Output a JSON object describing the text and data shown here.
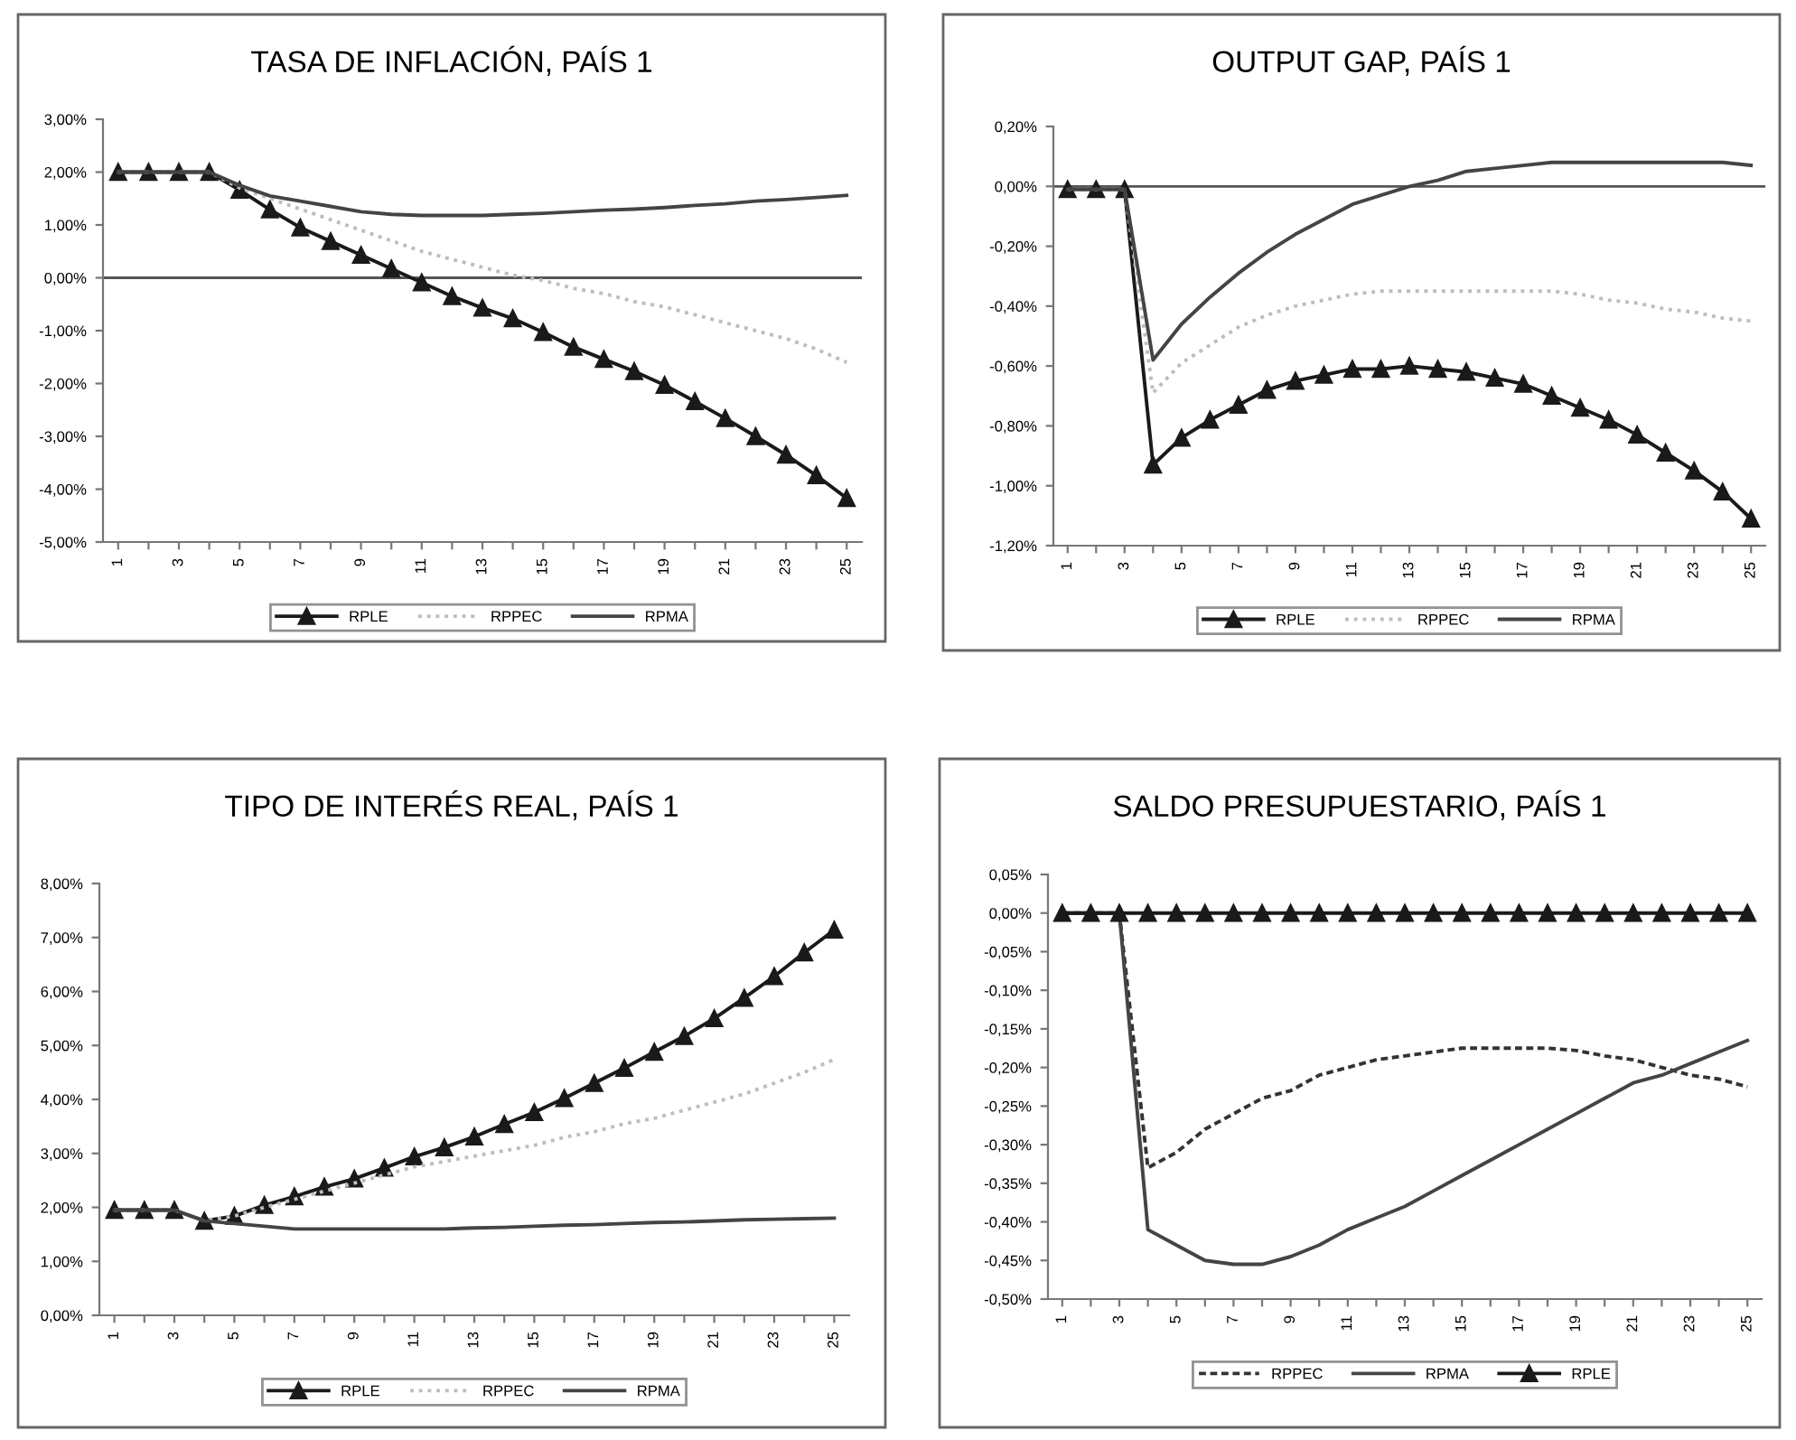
{
  "chart_data": [
    {
      "type": "line",
      "title": "TASA DE INFLACIÓN, PAÍS 1",
      "categories": [
        "1",
        null,
        "3",
        null,
        "5",
        null,
        "7",
        null,
        "9",
        null,
        "11",
        null,
        "13",
        null,
        "15",
        null,
        "17",
        null,
        "19",
        null,
        "21",
        null,
        "23",
        null,
        "25"
      ],
      "series": [
        {
          "name": "RPLE",
          "color": "#1a1a1a",
          "marker": "triangle",
          "line_style": "solid",
          "values": [
            2,
            2,
            2,
            2,
            1.66,
            1.29,
            0.95,
            0.69,
            0.43,
            0.17,
            -0.09,
            -0.35,
            -0.57,
            -0.77,
            -1.03,
            -1.31,
            -1.54,
            -1.77,
            -2.03,
            -2.34,
            -2.66,
            -3.0,
            -3.35,
            -3.74,
            -4.17
          ]
        },
        {
          "name": "RPPEC",
          "color": "#bdbdbd",
          "marker": "none",
          "line_style": "dotted",
          "values": [
            2,
            2,
            2,
            2,
            1.7,
            1.5,
            1.3,
            1.1,
            0.9,
            0.7,
            0.5,
            0.35,
            0.2,
            0.05,
            -0.05,
            -0.2,
            -0.3,
            -0.45,
            -0.55,
            -0.7,
            -0.85,
            -1.0,
            -1.15,
            -1.35,
            -1.6
          ]
        },
        {
          "name": "RPMA",
          "color": "#444444",
          "marker": "none",
          "line_style": "solid",
          "values": [
            2,
            2,
            2,
            2,
            1.75,
            1.55,
            1.45,
            1.35,
            1.25,
            1.2,
            1.18,
            1.18,
            1.18,
            1.2,
            1.22,
            1.25,
            1.28,
            1.3,
            1.33,
            1.37,
            1.4,
            1.45,
            1.48,
            1.52,
            1.56
          ]
        }
      ],
      "ylim": [
        -5,
        3
      ],
      "yticks": [
        {
          "value": 3,
          "label": "3,00%"
        },
        {
          "value": 2,
          "label": "2,00%"
        },
        {
          "value": 1,
          "label": "1,00%"
        },
        {
          "value": 0,
          "label": "0,00%"
        },
        {
          "value": -1,
          "label": "-1,00%"
        },
        {
          "value": -2,
          "label": "-2,00%"
        },
        {
          "value": -3,
          "label": "-3,00%"
        },
        {
          "value": -4,
          "label": "-4,00%"
        },
        {
          "value": -5,
          "label": "-5,00%"
        }
      ],
      "ref_lines": [
        {
          "axis": "y",
          "value": 0,
          "color": "#555555"
        }
      ],
      "legend": "bottom"
    },
    {
      "type": "line",
      "title": "OUTPUT GAP, PAÍS 1",
      "categories": [
        "1",
        null,
        "3",
        null,
        "5",
        null,
        "7",
        null,
        "9",
        null,
        "11",
        null,
        "13",
        null,
        "15",
        null,
        "17",
        null,
        "19",
        null,
        "21",
        null,
        "23",
        null,
        "25"
      ],
      "series": [
        {
          "name": "RPLE",
          "color": "#1a1a1a",
          "marker": "triangle",
          "line_style": "solid",
          "values": [
            -0.01,
            -0.01,
            -0.01,
            -0.93,
            -0.84,
            -0.78,
            -0.73,
            -0.68,
            -0.65,
            -0.63,
            -0.61,
            -0.61,
            -0.6,
            -0.61,
            -0.62,
            -0.64,
            -0.66,
            -0.7,
            -0.74,
            -0.78,
            -0.83,
            -0.89,
            -0.95,
            -1.02,
            -1.11
          ]
        },
        {
          "name": "RPPEC",
          "color": "#bdbdbd",
          "marker": "none",
          "line_style": "dotted",
          "values": [
            -0.01,
            -0.01,
            -0.01,
            -0.69,
            -0.59,
            -0.53,
            -0.47,
            -0.43,
            -0.4,
            -0.38,
            -0.36,
            -0.35,
            -0.35,
            -0.35,
            -0.35,
            -0.35,
            -0.35,
            -0.35,
            -0.36,
            -0.38,
            -0.39,
            -0.41,
            -0.42,
            -0.44,
            -0.45
          ]
        },
        {
          "name": "RPMA",
          "color": "#444444",
          "marker": "none",
          "line_style": "solid",
          "values": [
            -0.01,
            -0.01,
            -0.01,
            -0.58,
            -0.46,
            -0.37,
            -0.29,
            -0.22,
            -0.16,
            -0.11,
            -0.06,
            -0.03,
            0.0,
            0.02,
            0.05,
            0.06,
            0.07,
            0.08,
            0.08,
            0.08,
            0.08,
            0.08,
            0.08,
            0.08,
            0.07
          ]
        }
      ],
      "ylim": [
        -1.2,
        0.2
      ],
      "yticks": [
        {
          "value": 0.2,
          "label": "0,20%"
        },
        {
          "value": 0,
          "label": "0,00%"
        },
        {
          "value": -0.2,
          "label": "-0,20%"
        },
        {
          "value": -0.4,
          "label": "-0,40%"
        },
        {
          "value": -0.6,
          "label": "-0,60%"
        },
        {
          "value": -0.8,
          "label": "-0,80%"
        },
        {
          "value": -1.0,
          "label": "-1,00%"
        },
        {
          "value": -1.2,
          "label": "-1,20%"
        }
      ],
      "ref_lines": [
        {
          "axis": "y",
          "value": 0,
          "color": "#555555"
        }
      ],
      "legend": "bottom"
    },
    {
      "type": "line",
      "title": "TIPO DE INTERÉS REAL, PAÍS 1",
      "categories": [
        "1",
        null,
        "3",
        null,
        "5",
        null,
        "7",
        null,
        "9",
        null,
        "11",
        null,
        "13",
        null,
        "15",
        null,
        "17",
        null,
        "19",
        null,
        "21",
        null,
        "23",
        null,
        "25"
      ],
      "series": [
        {
          "name": "RPLE",
          "color": "#1a1a1a",
          "marker": "triangle",
          "line_style": "solid",
          "values": [
            1.95,
            1.95,
            1.95,
            1.75,
            1.84,
            2.04,
            2.2,
            2.38,
            2.53,
            2.73,
            2.94,
            3.11,
            3.31,
            3.54,
            3.76,
            4.02,
            4.3,
            4.58,
            4.88,
            5.17,
            5.5,
            5.88,
            6.28,
            6.72,
            7.14
          ]
        },
        {
          "name": "RPPEC",
          "color": "#bdbdbd",
          "marker": "none",
          "line_style": "dotted",
          "values": [
            1.95,
            1.95,
            1.95,
            1.75,
            1.84,
            2.0,
            2.15,
            2.3,
            2.45,
            2.6,
            2.75,
            2.85,
            2.95,
            3.05,
            3.15,
            3.3,
            3.4,
            3.55,
            3.65,
            3.8,
            3.95,
            4.1,
            4.3,
            4.5,
            4.74
          ]
        },
        {
          "name": "RPMA",
          "color": "#444444",
          "marker": "none",
          "line_style": "solid",
          "values": [
            1.95,
            1.95,
            1.95,
            1.75,
            1.7,
            1.65,
            1.6,
            1.6,
            1.6,
            1.6,
            1.6,
            1.6,
            1.62,
            1.63,
            1.65,
            1.67,
            1.68,
            1.7,
            1.72,
            1.73,
            1.75,
            1.77,
            1.78,
            1.79,
            1.8
          ]
        }
      ],
      "ylim": [
        0,
        8
      ],
      "yticks": [
        {
          "value": 8,
          "label": "8,00%"
        },
        {
          "value": 7,
          "label": "7,00%"
        },
        {
          "value": 6,
          "label": "6,00%"
        },
        {
          "value": 5,
          "label": "5,00%"
        },
        {
          "value": 4,
          "label": "4,00%"
        },
        {
          "value": 3,
          "label": "3,00%"
        },
        {
          "value": 2,
          "label": "2,00%"
        },
        {
          "value": 1,
          "label": "1,00%"
        },
        {
          "value": 0,
          "label": "0,00%"
        }
      ],
      "legend": "bottom"
    },
    {
      "type": "line",
      "title": "SALDO PRESUPUESTARIO, PAÍS 1",
      "categories": [
        "1",
        null,
        "3",
        null,
        "5",
        null,
        "7",
        null,
        "9",
        null,
        "11",
        null,
        "13",
        null,
        "15",
        null,
        "17",
        null,
        "19",
        null,
        "21",
        null,
        "23",
        null,
        "25"
      ],
      "series": [
        {
          "name": "RPPEC",
          "color": "#333333",
          "marker": "none",
          "line_style": "dashed",
          "values": [
            0,
            0,
            0,
            -0.33,
            -0.31,
            -0.28,
            -0.26,
            -0.24,
            -0.23,
            -0.21,
            -0.2,
            -0.19,
            -0.185,
            -0.18,
            -0.175,
            -0.175,
            -0.175,
            -0.175,
            -0.178,
            -0.185,
            -0.19,
            -0.2,
            -0.21,
            -0.215,
            -0.225
          ]
        },
        {
          "name": "RPMA",
          "color": "#444444",
          "marker": "none",
          "line_style": "solid",
          "values": [
            0,
            0,
            0,
            -0.41,
            -0.43,
            -0.45,
            -0.455,
            -0.455,
            -0.445,
            -0.43,
            -0.41,
            -0.395,
            -0.38,
            -0.36,
            -0.34,
            -0.32,
            -0.3,
            -0.28,
            -0.26,
            -0.24,
            -0.22,
            -0.21,
            -0.195,
            -0.18,
            -0.165
          ]
        },
        {
          "name": "RPLE",
          "color": "#1a1a1a",
          "marker": "triangle",
          "line_style": "solid",
          "values": [
            0,
            0,
            0,
            0,
            0,
            0,
            0,
            0,
            0,
            0,
            0,
            0,
            0,
            0,
            0,
            0,
            0,
            0,
            0,
            0,
            0,
            0,
            0,
            0,
            0
          ]
        }
      ],
      "ylim": [
        -0.5,
        0.05
      ],
      "yticks": [
        {
          "value": 0.05,
          "label": "0,05%"
        },
        {
          "value": 0,
          "label": "0,00%"
        },
        {
          "value": -0.05,
          "label": "-0,05%"
        },
        {
          "value": -0.1,
          "label": "-0,10%"
        },
        {
          "value": -0.15,
          "label": "-0,15%"
        },
        {
          "value": -0.2,
          "label": "-0,20%"
        },
        {
          "value": -0.25,
          "label": "-0,25%"
        },
        {
          "value": -0.3,
          "label": "-0,30%"
        },
        {
          "value": -0.35,
          "label": "-0,35%"
        },
        {
          "value": -0.4,
          "label": "-0,40%"
        },
        {
          "value": -0.45,
          "label": "-0,45%"
        },
        {
          "value": -0.5,
          "label": "-0,50%"
        }
      ],
      "legend": "bottom"
    }
  ]
}
